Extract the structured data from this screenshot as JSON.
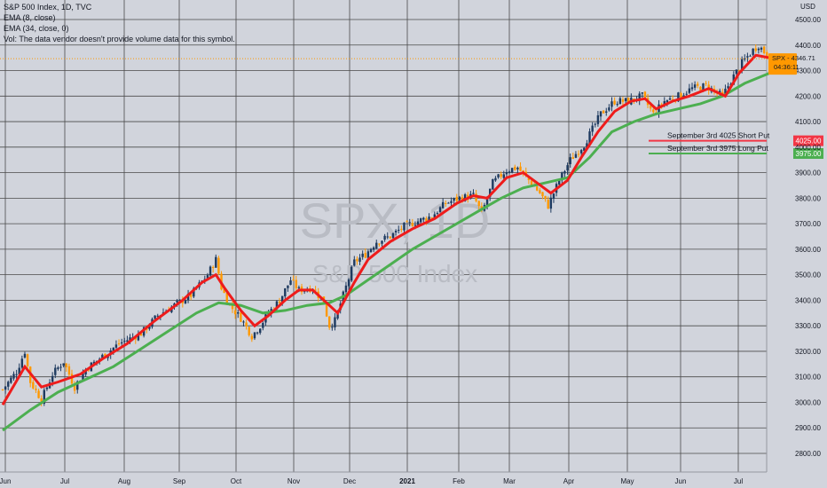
{
  "legend": {
    "symbol": "S&P 500 Index, 1D, TVC",
    "ema8": "EMA (8, close)",
    "ema34": "EMA (34, close, 0)",
    "vol": "Vol: The data vendor doesn't provide volume data for this symbol."
  },
  "watermark": {
    "ticker": "SPX, 1D",
    "name": "S&P 500 Index"
  },
  "colors": {
    "background": "#d1d4dc",
    "grid": "#4a4a4a",
    "ema8": "#ee1c1c",
    "ema34": "#4caf50",
    "candle_up": "#1e3a5f",
    "candle_down": "#ff9800",
    "price_tag": "#ff9800",
    "short_put": "#f23645",
    "long_put": "#4caf50"
  },
  "chart_data": {
    "type": "line",
    "x_unit": "trading days (Jun 2020 - Jul 2021)",
    "x_tick_labels": [
      "Jun",
      "Jul",
      "Aug",
      "Sep",
      "Oct",
      "Nov",
      "Dec",
      "2021",
      "Feb",
      "Mar",
      "Apr",
      "May",
      "Jun",
      "Jul"
    ],
    "y_axis_label": "USD",
    "ylim": [
      2750,
      4550
    ],
    "y_ticks": [
      2800,
      2900,
      3000,
      3100,
      3200,
      3300,
      3400,
      3500,
      3600,
      3700,
      3800,
      3900,
      4000,
      4100,
      4200,
      4300,
      4400,
      4500
    ],
    "y_tick_labels": [
      "2800.00",
      "2900.00",
      "3000.00",
      "3100.00",
      "3200.00",
      "3300.00",
      "3400.00",
      "3500.00",
      "3600.00",
      "3700.00",
      "3800.00",
      "3900.00",
      "4000.00",
      "4100.00",
      "4200.00",
      "4300.00",
      "4400.00",
      "4500.00"
    ],
    "grid": true,
    "price_path": [
      [
        0,
        3050
      ],
      [
        5,
        3120
      ],
      [
        8,
        3200
      ],
      [
        10,
        3080
      ],
      [
        14,
        3010
      ],
      [
        18,
        3110
      ],
      [
        22,
        3160
      ],
      [
        26,
        3060
      ],
      [
        30,
        3130
      ],
      [
        36,
        3180
      ],
      [
        42,
        3230
      ],
      [
        50,
        3270
      ],
      [
        56,
        3340
      ],
      [
        62,
        3380
      ],
      [
        68,
        3420
      ],
      [
        74,
        3500
      ],
      [
        77,
        3560
      ],
      [
        79,
        3450
      ],
      [
        82,
        3380
      ],
      [
        86,
        3330
      ],
      [
        90,
        3260
      ],
      [
        93,
        3300
      ],
      [
        96,
        3350
      ],
      [
        100,
        3400
      ],
      [
        104,
        3480
      ],
      [
        107,
        3440
      ],
      [
        112,
        3450
      ],
      [
        116,
        3390
      ],
      [
        118,
        3300
      ],
      [
        120,
        3320
      ],
      [
        123,
        3420
      ],
      [
        127,
        3550
      ],
      [
        131,
        3580
      ],
      [
        135,
        3630
      ],
      [
        140,
        3650
      ],
      [
        145,
        3690
      ],
      [
        150,
        3710
      ],
      [
        155,
        3730
      ],
      [
        160,
        3780
      ],
      [
        165,
        3800
      ],
      [
        170,
        3810
      ],
      [
        173,
        3740
      ],
      [
        177,
        3860
      ],
      [
        182,
        3910
      ],
      [
        186,
        3920
      ],
      [
        190,
        3870
      ],
      [
        194,
        3820
      ],
      [
        197,
        3770
      ],
      [
        201,
        3870
      ],
      [
        205,
        3950
      ],
      [
        210,
        4010
      ],
      [
        216,
        4130
      ],
      [
        221,
        4180
      ],
      [
        226,
        4180
      ],
      [
        231,
        4200
      ],
      [
        235,
        4130
      ],
      [
        239,
        4180
      ],
      [
        244,
        4200
      ],
      [
        249,
        4230
      ],
      [
        254,
        4240
      ],
      [
        260,
        4200
      ],
      [
        263,
        4260
      ],
      [
        267,
        4330
      ],
      [
        271,
        4380
      ],
      [
        273,
        4400
      ],
      [
        276,
        4360
      ]
    ],
    "series": [
      {
        "name": "EMA (8, close)",
        "values": [
          [
            0,
            2990
          ],
          [
            8,
            3140
          ],
          [
            14,
            3060
          ],
          [
            20,
            3080
          ],
          [
            28,
            3110
          ],
          [
            36,
            3170
          ],
          [
            45,
            3230
          ],
          [
            55,
            3320
          ],
          [
            65,
            3400
          ],
          [
            72,
            3470
          ],
          [
            77,
            3500
          ],
          [
            80,
            3450
          ],
          [
            86,
            3360
          ],
          [
            91,
            3300
          ],
          [
            96,
            3340
          ],
          [
            102,
            3400
          ],
          [
            107,
            3440
          ],
          [
            112,
            3440
          ],
          [
            117,
            3390
          ],
          [
            121,
            3350
          ],
          [
            127,
            3470
          ],
          [
            132,
            3560
          ],
          [
            140,
            3630
          ],
          [
            148,
            3680
          ],
          [
            156,
            3720
          ],
          [
            164,
            3780
          ],
          [
            170,
            3810
          ],
          [
            175,
            3800
          ],
          [
            182,
            3880
          ],
          [
            188,
            3900
          ],
          [
            193,
            3860
          ],
          [
            198,
            3820
          ],
          [
            204,
            3870
          ],
          [
            209,
            3960
          ],
          [
            215,
            4060
          ],
          [
            221,
            4140
          ],
          [
            227,
            4180
          ],
          [
            232,
            4190
          ],
          [
            236,
            4150
          ],
          [
            242,
            4180
          ],
          [
            248,
            4200
          ],
          [
            255,
            4230
          ],
          [
            261,
            4200
          ],
          [
            266,
            4290
          ],
          [
            272,
            4360
          ],
          [
            277,
            4350
          ]
        ]
      },
      {
        "name": "EMA (34, close, 0)",
        "values": [
          [
            0,
            2890
          ],
          [
            10,
            2970
          ],
          [
            20,
            3040
          ],
          [
            30,
            3090
          ],
          [
            40,
            3140
          ],
          [
            50,
            3210
          ],
          [
            60,
            3280
          ],
          [
            70,
            3350
          ],
          [
            78,
            3390
          ],
          [
            86,
            3380
          ],
          [
            94,
            3350
          ],
          [
            102,
            3360
          ],
          [
            110,
            3380
          ],
          [
            118,
            3390
          ],
          [
            124,
            3420
          ],
          [
            132,
            3480
          ],
          [
            140,
            3540
          ],
          [
            148,
            3600
          ],
          [
            156,
            3650
          ],
          [
            164,
            3700
          ],
          [
            172,
            3750
          ],
          [
            180,
            3800
          ],
          [
            188,
            3840
          ],
          [
            196,
            3860
          ],
          [
            204,
            3880
          ],
          [
            212,
            3960
          ],
          [
            220,
            4060
          ],
          [
            228,
            4100
          ],
          [
            236,
            4130
          ],
          [
            244,
            4150
          ],
          [
            252,
            4170
          ],
          [
            260,
            4200
          ],
          [
            268,
            4250
          ],
          [
            277,
            4290
          ]
        ]
      }
    ],
    "last_price_label": "SPX - 4346.71",
    "last_price_value": 4346.71,
    "countdown": "04:36:11",
    "horizontal_levels": [
      {
        "label": "September 3rd 4025 Short Put",
        "value": 4025,
        "tag": "4025.00"
      },
      {
        "label": "September 3rd 3975 Long Put",
        "value": 3975,
        "tag": "3975.00"
      }
    ]
  }
}
